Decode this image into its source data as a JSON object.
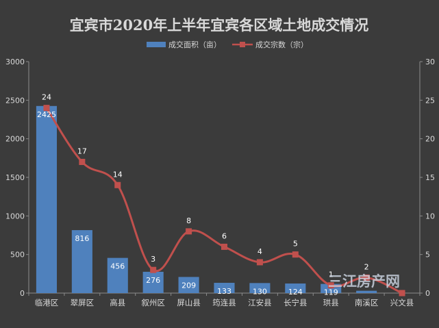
{
  "chart_data": {
    "type": "bar+line",
    "title": "宜宾市2020年上半年宜宾各区域土地成交情况",
    "categories": [
      "临港区",
      "翠屏区",
      "高县",
      "叙州区",
      "屏山县",
      "筠连县",
      "江安县",
      "长宁县",
      "珙县",
      "南溪区",
      "兴文县"
    ],
    "series": [
      {
        "name": "成交面积（亩）",
        "type": "bar",
        "axis": "left",
        "color": "#4f81bd",
        "values": [
          2425,
          816,
          456,
          276,
          209,
          133,
          130,
          124,
          119,
          30,
          0
        ],
        "labels": [
          "2425",
          "816",
          "456",
          "276",
          "209",
          "133",
          "130",
          "124",
          "119",
          "",
          ""
        ]
      },
      {
        "name": "成交宗数（宗）",
        "type": "line",
        "axis": "right",
        "color": "#c0504d",
        "values": [
          24,
          17,
          14,
          3,
          8,
          6,
          4,
          5,
          1,
          2,
          0
        ],
        "labels": [
          "24",
          "17",
          "14",
          "3",
          "8",
          "6",
          "4",
          "5",
          "1",
          "2",
          ""
        ]
      }
    ],
    "y_left": {
      "min": 0,
      "max": 3000,
      "ticks": [
        0,
        500,
        1000,
        1500,
        2000,
        2500,
        3000
      ]
    },
    "y_right": {
      "min": 0,
      "max": 30,
      "ticks": [
        0,
        5,
        10,
        15,
        20,
        25,
        30
      ]
    },
    "legend_position": "top-center",
    "grid": false
  },
  "watermark": "三江房产网"
}
